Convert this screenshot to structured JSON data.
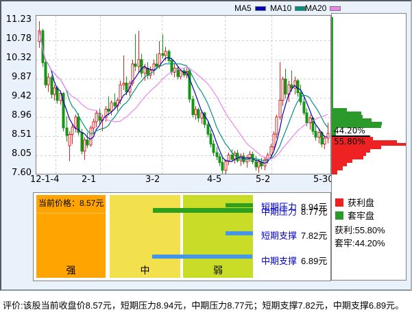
{
  "legend": {
    "ma5": "MA5",
    "ma10": "MA10",
    "ma20": "MA20"
  },
  "colors": {
    "ma5": "#0000bb",
    "ma10": "#00907c",
    "ma20": "#ee85ee",
    "candle_up": "#dd2222",
    "candle_down": "#169616",
    "profit": "#ee2222",
    "trapped": "#2a9a2a",
    "pressure_bar": "#2fa01e",
    "support_bar": "#4596e6",
    "zone_strong": "#ffa400",
    "zone_medium": "#f2e14c",
    "zone_weak": "#c8dc28",
    "grid": "#cfcfcf",
    "label_blue": "#0000dd"
  },
  "chart_data": {
    "type": "candlestick",
    "title": "",
    "y_ticks": [
      "11.23",
      "10.78",
      "10.32",
      "9.87",
      "9.42",
      "8.96",
      "8.51",
      "8.05",
      "7.60"
    ],
    "ylim": [
      7.6,
      11.23
    ],
    "x_ticks": [
      {
        "label": "12-1-4",
        "x": 60
      },
      {
        "label": "2-1",
        "x": 135
      },
      {
        "label": "3-2",
        "x": 228
      },
      {
        "label": "4-5",
        "x": 318
      },
      {
        "label": "5-2",
        "x": 389
      },
      {
        "label": "5-30",
        "x": 473
      }
    ],
    "x_grid": [
      78,
      143,
      233,
      325,
      393
    ],
    "series_legend": [
      "MA5",
      "MA10",
      "MA20"
    ],
    "candles": [
      [
        10.75,
        11.23,
        10.6,
        11.0
      ],
      [
        11.0,
        11.05,
        10.15,
        10.25
      ],
      [
        10.25,
        10.35,
        9.65,
        9.72
      ],
      [
        9.72,
        10.0,
        9.55,
        9.9
      ],
      [
        9.9,
        9.95,
        9.4,
        9.5
      ],
      [
        9.5,
        9.72,
        9.35,
        9.65
      ],
      [
        9.65,
        9.7,
        9.28,
        9.35
      ],
      [
        9.35,
        9.58,
        9.25,
        9.52
      ],
      [
        9.52,
        9.55,
        8.62,
        8.7
      ],
      [
        8.7,
        8.98,
        8.38,
        8.52
      ],
      [
        8.28,
        8.62,
        7.92,
        8.55
      ],
      [
        8.55,
        8.78,
        8.32,
        8.72
      ],
      [
        8.72,
        9.02,
        8.6,
        8.96
      ],
      [
        8.96,
        9.05,
        8.52,
        8.6
      ],
      [
        8.6,
        8.68,
        8.08,
        8.15
      ],
      [
        8.15,
        8.48,
        7.95,
        8.42
      ],
      [
        8.42,
        8.6,
        8.22,
        8.3
      ],
      [
        8.3,
        8.76,
        8.26,
        8.7
      ],
      [
        8.7,
        8.92,
        8.55,
        8.85
      ],
      [
        8.85,
        9.12,
        8.72,
        9.05
      ],
      [
        9.05,
        9.16,
        8.8,
        8.88
      ],
      [
        8.88,
        9.02,
        8.62,
        8.95
      ],
      [
        8.95,
        9.22,
        8.85,
        9.15
      ],
      [
        9.15,
        9.45,
        9.0,
        9.1
      ],
      [
        9.1,
        9.36,
        9.0,
        9.3
      ],
      [
        9.3,
        9.52,
        9.14,
        9.22
      ],
      [
        9.22,
        9.42,
        9.1,
        9.36
      ],
      [
        9.36,
        9.82,
        9.26,
        9.72
      ],
      [
        9.72,
        10.42,
        9.6,
        9.76
      ],
      [
        9.76,
        9.92,
        9.48,
        9.55
      ],
      [
        9.55,
        9.82,
        9.45,
        9.76
      ],
      [
        9.76,
        10.32,
        9.7,
        10.22
      ],
      [
        10.22,
        10.92,
        10.05,
        10.16
      ],
      [
        10.16,
        11.0,
        10.02,
        10.32
      ],
      [
        10.32,
        10.46,
        9.9,
        10.0
      ],
      [
        10.0,
        10.22,
        9.82,
        10.12
      ],
      [
        10.12,
        10.26,
        9.86,
        9.95
      ],
      [
        9.95,
        10.16,
        9.86,
        10.06
      ],
      [
        10.06,
        10.32,
        9.96,
        10.22
      ],
      [
        10.22,
        10.46,
        10.1,
        10.16
      ],
      [
        10.16,
        10.76,
        10.1,
        10.46
      ],
      [
        10.46,
        10.92,
        10.35,
        10.42
      ],
      [
        10.42,
        10.62,
        10.3,
        10.52
      ],
      [
        10.52,
        10.56,
        10.24,
        10.3
      ],
      [
        10.3,
        10.36,
        9.95,
        10.02
      ],
      [
        10.02,
        10.22,
        9.9,
        10.12
      ],
      [
        10.12,
        10.16,
        9.85,
        9.92
      ],
      [
        9.92,
        10.12,
        9.85,
        10.06
      ],
      [
        10.06,
        10.12,
        9.9,
        9.96
      ],
      [
        9.96,
        10.12,
        9.88,
        10.04
      ],
      [
        10.06,
        10.08,
        9.3,
        9.38
      ],
      [
        9.38,
        9.46,
        8.95,
        9.02
      ],
      [
        9.02,
        9.22,
        8.9,
        9.14
      ],
      [
        9.14,
        9.18,
        8.84,
        8.94
      ],
      [
        8.94,
        9.12,
        8.8,
        9.06
      ],
      [
        9.06,
        9.08,
        8.7,
        8.78
      ],
      [
        8.78,
        8.86,
        8.48,
        8.56
      ],
      [
        8.56,
        8.66,
        8.24,
        8.32
      ],
      [
        8.32,
        8.42,
        8.04,
        8.12
      ],
      [
        8.12,
        8.26,
        7.94,
        8.02
      ],
      [
        8.02,
        8.1,
        7.8,
        7.88
      ],
      [
        7.88,
        8.0,
        7.62,
        7.7
      ],
      [
        7.7,
        7.96,
        7.6,
        7.92
      ],
      [
        7.92,
        8.12,
        7.82,
        8.06
      ],
      [
        8.06,
        8.2,
        7.9,
        7.96
      ],
      [
        7.96,
        8.16,
        7.86,
        8.1
      ],
      [
        8.1,
        8.18,
        7.88,
        7.92
      ],
      [
        7.92,
        8.1,
        7.8,
        8.04
      ],
      [
        8.04,
        8.12,
        7.84,
        7.9
      ],
      [
        7.9,
        8.06,
        7.76,
        8.0
      ],
      [
        8.0,
        8.16,
        7.9,
        8.08
      ],
      [
        8.08,
        8.14,
        7.84,
        7.9
      ],
      [
        7.9,
        8.04,
        7.7,
        7.78
      ],
      [
        7.78,
        7.96,
        7.64,
        7.9
      ],
      [
        7.9,
        8.0,
        7.72,
        7.8
      ],
      [
        7.8,
        8.02,
        7.7,
        7.96
      ],
      [
        7.96,
        8.12,
        7.86,
        8.06
      ],
      [
        8.06,
        8.32,
        7.96,
        8.26
      ],
      [
        8.26,
        8.62,
        8.16,
        8.56
      ],
      [
        8.56,
        9.02,
        8.46,
        8.96
      ],
      [
        8.96,
        10.26,
        8.9,
        9.36
      ],
      [
        9.36,
        9.92,
        9.22,
        9.86
      ],
      [
        9.86,
        10.1,
        9.4,
        9.5
      ],
      [
        9.5,
        9.82,
        9.32,
        9.72
      ],
      [
        9.72,
        10.06,
        9.56,
        9.64
      ],
      [
        9.64,
        9.92,
        9.5,
        9.82
      ],
      [
        9.82,
        9.86,
        9.44,
        9.54
      ],
      [
        9.54,
        9.72,
        9.24,
        9.32
      ],
      [
        9.32,
        9.46,
        9.0,
        9.06
      ],
      [
        9.06,
        9.16,
        8.74,
        8.82
      ],
      [
        8.82,
        9.02,
        8.66,
        8.94
      ],
      [
        8.94,
        8.96,
        8.54,
        8.62
      ],
      [
        8.62,
        8.76,
        8.4,
        8.48
      ],
      [
        8.48,
        8.66,
        8.34,
        8.6
      ],
      [
        8.6,
        8.62,
        8.24,
        8.32
      ],
      [
        8.32,
        8.52,
        8.2,
        8.46
      ],
      [
        8.46,
        8.82,
        8.34,
        8.57
      ]
    ],
    "chip_distribution": {
      "trapped_pct": "44.20%",
      "profit_pct": "55.80%",
      "divider_y": 196,
      "green_rows": [
        [
          155,
          22,
          5
        ],
        [
          160,
          43,
          5
        ],
        [
          165,
          45,
          5
        ],
        [
          170,
          58,
          5
        ],
        [
          175,
          73,
          5
        ],
        [
          180,
          72,
          4
        ],
        [
          184,
          6,
          11
        ]
      ],
      "red_rows": [
        [
          197,
          60,
          5
        ],
        [
          202,
          95,
          4
        ],
        [
          206,
          113,
          4
        ],
        [
          210,
          72,
          5
        ],
        [
          215,
          56,
          5
        ],
        [
          220,
          50,
          5
        ],
        [
          225,
          46,
          5
        ],
        [
          230,
          30,
          5
        ],
        [
          235,
          22,
          5
        ],
        [
          240,
          16,
          6
        ],
        [
          246,
          8,
          6
        ]
      ],
      "edge_green": [
        22,
        195
      ],
      "edge_red": [
        197,
        252
      ]
    }
  },
  "bottom": {
    "current_price": "当前价格：8.57元",
    "zone_strong": "强",
    "zone_medium": "中",
    "zone_weak": "弱",
    "short_pressure_label": "短期压力",
    "short_pressure_value": "8.94元",
    "mid_pressure_label": "中期压力",
    "mid_pressure_value": "8.77元",
    "short_support_label": "短期支撑",
    "short_support_value": "7.82元",
    "mid_support_label": "中期支撑",
    "mid_support_value": "6.89元"
  },
  "chip_legend": {
    "profit_label": "获利盘",
    "trapped_label": "套牢盘",
    "profit_text": "获利:55.80%",
    "trapped_text": "套牢:44.20%"
  },
  "evaluation": "评价:该股当前收盘价8.57元，短期压力8.94元，中期压力8.77元；短期支撑7.82元，中期支撑6.89元。"
}
